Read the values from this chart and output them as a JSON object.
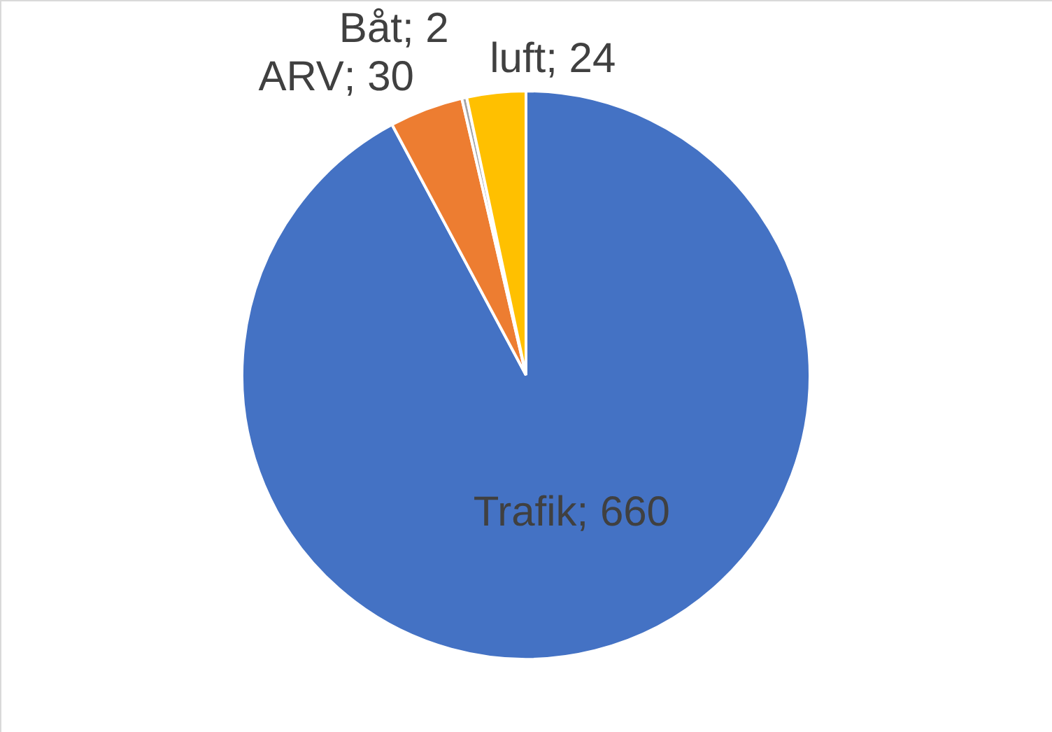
{
  "chart_data": {
    "type": "pie",
    "categories": [
      "Trafik",
      "ARV",
      "Båt",
      "luft"
    ],
    "values": [
      660,
      30,
      2,
      24
    ],
    "colors": [
      "#4472c4",
      "#ed7d31",
      "#a5a5a5",
      "#ffc000"
    ],
    "value_labels": [
      "; 660",
      "; 30",
      "; 2",
      "; 24"
    ]
  }
}
